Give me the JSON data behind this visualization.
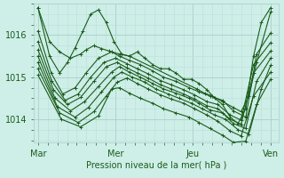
{
  "bg_color": "#ceeee8",
  "line_color": "#1a5c1a",
  "grid_color_major": "#aacfca",
  "grid_color_minor": "#bdddd8",
  "xlabel": "Pression niveau de la mer( hPa )",
  "xtick_labels": [
    "Mar",
    "Mer",
    "Jeu",
    "Ven"
  ],
  "xtick_positions": [
    0,
    1,
    2,
    3
  ],
  "ytick_labels": [
    "1014",
    "1015",
    "1016"
  ],
  "ytick_positions": [
    1014,
    1015,
    1016
  ],
  "ylim": [
    1013.45,
    1016.75
  ],
  "xlim": [
    -0.05,
    3.1
  ],
  "series": [
    {
      "x": [
        0,
        0.15,
        0.28,
        0.38,
        0.48,
        0.58,
        0.68,
        0.78,
        0.88,
        0.98,
        1.08,
        1.18,
        1.28,
        1.38,
        1.48,
        1.58,
        1.68,
        1.78,
        1.88,
        1.98,
        2.08,
        2.18,
        2.28,
        2.38,
        2.48,
        2.58,
        2.68,
        2.78,
        2.88,
        3.0
      ],
      "y": [
        1016.65,
        1015.5,
        1015.1,
        1015.35,
        1015.7,
        1016.1,
        1016.5,
        1016.6,
        1016.3,
        1015.85,
        1015.55,
        1015.5,
        1015.6,
        1015.45,
        1015.3,
        1015.2,
        1015.2,
        1015.1,
        1014.95,
        1014.95,
        1014.85,
        1014.7,
        1014.5,
        1014.35,
        1014.05,
        1013.9,
        1014.25,
        1015.5,
        1016.3,
        1016.65
      ]
    },
    {
      "x": [
        0,
        0.17,
        0.32,
        0.48,
        0.62,
        0.78,
        0.95,
        1.05,
        1.18,
        1.32,
        1.48,
        1.62,
        1.78,
        1.95,
        2.08,
        2.22,
        2.38,
        2.52,
        2.68,
        2.82,
        3.0
      ],
      "y": [
        1016.1,
        1015.1,
        1014.6,
        1014.75,
        1015.1,
        1015.45,
        1015.6,
        1015.5,
        1015.4,
        1015.3,
        1015.15,
        1015.0,
        1014.9,
        1014.75,
        1014.65,
        1014.55,
        1014.45,
        1014.2,
        1014.05,
        1015.55,
        1016.05
      ]
    },
    {
      "x": [
        0,
        0.18,
        0.35,
        0.52,
        0.68,
        0.85,
        1.0,
        1.15,
        1.28,
        1.42,
        1.58,
        1.72,
        1.88,
        2.02,
        2.18,
        2.32,
        2.48,
        2.62,
        2.78,
        3.0
      ],
      "y": [
        1015.85,
        1014.9,
        1014.45,
        1014.6,
        1015.0,
        1015.35,
        1015.45,
        1015.32,
        1015.2,
        1015.08,
        1014.92,
        1014.82,
        1014.7,
        1014.58,
        1014.42,
        1014.35,
        1014.1,
        1013.98,
        1015.3,
        1015.82
      ]
    },
    {
      "x": [
        0,
        0.2,
        0.38,
        0.55,
        0.72,
        0.88,
        1.02,
        1.15,
        1.28,
        1.42,
        1.58,
        1.72,
        1.88,
        2.02,
        2.18,
        2.32,
        2.48,
        2.62,
        2.78,
        3.0
      ],
      "y": [
        1015.65,
        1014.7,
        1014.35,
        1014.52,
        1014.9,
        1015.25,
        1015.35,
        1015.22,
        1015.1,
        1014.98,
        1014.82,
        1014.72,
        1014.6,
        1014.48,
        1014.32,
        1014.25,
        1014.0,
        1013.88,
        1015.1,
        1015.62
      ]
    },
    {
      "x": [
        0,
        0.22,
        0.42,
        0.6,
        0.78,
        0.95,
        1.05,
        1.18,
        1.32,
        1.48,
        1.62,
        1.78,
        1.95,
        2.08,
        2.22,
        2.38,
        2.52,
        2.68,
        2.82,
        3.0
      ],
      "y": [
        1015.5,
        1014.5,
        1014.2,
        1014.42,
        1014.78,
        1015.12,
        1015.25,
        1015.12,
        1015.0,
        1014.85,
        1014.72,
        1014.62,
        1014.5,
        1014.38,
        1014.22,
        1014.15,
        1013.9,
        1013.78,
        1014.9,
        1015.45
      ]
    },
    {
      "x": [
        0,
        0.25,
        0.48,
        0.65,
        0.82,
        0.98,
        1.08,
        1.22,
        1.38,
        1.52,
        1.68,
        1.82,
        1.98,
        2.12,
        2.28,
        2.42,
        2.58,
        2.72,
        2.88,
        3.0
      ],
      "y": [
        1015.35,
        1014.3,
        1014.05,
        1014.28,
        1014.65,
        1015.0,
        1015.12,
        1015.0,
        1014.88,
        1014.72,
        1014.6,
        1014.5,
        1014.38,
        1014.25,
        1014.1,
        1014.0,
        1013.75,
        1013.65,
        1014.72,
        1015.28
      ]
    },
    {
      "x": [
        0,
        0.28,
        0.52,
        0.72,
        0.88,
        1.02,
        1.15,
        1.28,
        1.42,
        1.58,
        1.72,
        1.88,
        2.02,
        2.18,
        2.32,
        2.48,
        2.62,
        2.78,
        3.0
      ],
      "y": [
        1015.2,
        1014.15,
        1013.92,
        1014.18,
        1014.55,
        1014.88,
        1014.98,
        1014.85,
        1014.72,
        1014.58,
        1014.48,
        1014.38,
        1014.25,
        1014.1,
        1013.95,
        1013.72,
        1013.6,
        1014.55,
        1015.12
      ]
    },
    {
      "x": [
        0,
        0.3,
        0.55,
        0.78,
        0.95,
        1.05,
        1.18,
        1.32,
        1.48,
        1.62,
        1.78,
        1.95,
        2.08,
        2.22,
        2.38,
        2.52,
        2.68,
        2.82,
        3.0
      ],
      "y": [
        1015.05,
        1014.0,
        1013.82,
        1014.08,
        1014.72,
        1014.75,
        1014.62,
        1014.5,
        1014.38,
        1014.25,
        1014.15,
        1014.05,
        1013.92,
        1013.78,
        1013.62,
        1013.45,
        1013.48,
        1014.35,
        1014.95
      ]
    },
    {
      "x": [
        0,
        0.15,
        0.28,
        0.42,
        0.55,
        0.62,
        0.72,
        0.82,
        0.92,
        1.05,
        1.18,
        2.05,
        2.15,
        2.25,
        2.38,
        2.52,
        2.62,
        2.72,
        2.82,
        3.0
      ],
      "y": [
        1016.65,
        1015.85,
        1015.6,
        1015.45,
        1015.55,
        1015.65,
        1015.75,
        1015.68,
        1015.62,
        1015.55,
        1015.5,
        1014.72,
        1014.62,
        1014.55,
        1014.42,
        1014.28,
        1014.18,
        1014.55,
        1015.35,
        1016.55
      ]
    }
  ],
  "marker": "+",
  "markersize": 3,
  "linewidth": 0.8,
  "xlabel_fontsize": 7,
  "tick_fontsize": 7
}
